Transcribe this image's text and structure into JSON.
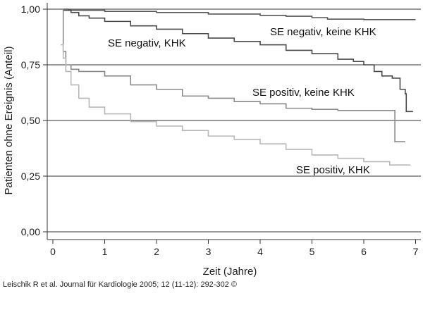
{
  "chart_data": {
    "type": "line",
    "subtype": "step (Kaplan-Meier survival curves)",
    "title": "",
    "xlabel": "Zeit (Jahre)",
    "ylabel": "Patienten ohne Ereignis (Anteil)",
    "xlim": [
      0,
      7.2
    ],
    "ylim": [
      0,
      1.03
    ],
    "x_ticks": [
      0,
      1,
      2,
      3,
      4,
      5,
      6,
      7
    ],
    "x_tick_labels": [
      "0",
      "1",
      "2",
      "3",
      "4",
      "5",
      "6",
      "7"
    ],
    "y_ticks": [
      0,
      0.25,
      0.5,
      0.75,
      1.0
    ],
    "y_tick_labels": [
      "0,00",
      "0,25",
      "0,50",
      "0,75",
      "1,00"
    ],
    "grid": "horizontal gridlines at y ticks",
    "legend": "none (series labeled directly on chart)",
    "series": [
      {
        "name": "SE negativ, keine KHK",
        "color": "#555555",
        "x": [
          0.15,
          0.3,
          1.0,
          2.0,
          3.0,
          4.0,
          4.5,
          5.0,
          5.3,
          6.0,
          6.5,
          7.0
        ],
        "y": [
          1.0,
          0.995,
          0.99,
          0.985,
          0.978,
          0.972,
          0.968,
          0.962,
          0.955,
          0.953,
          0.953,
          0.953
        ]
      },
      {
        "name": "SE negativ, KHK",
        "color": "#4a4a4a",
        "x": [
          0.2,
          0.35,
          0.5,
          0.7,
          1.0,
          1.5,
          2.0,
          2.5,
          3.0,
          3.5,
          4.0,
          4.5,
          5.0,
          5.5,
          5.8,
          6.0,
          6.2,
          6.35,
          6.55,
          6.7,
          6.8,
          6.82,
          6.95
        ],
        "y": [
          0.995,
          0.985,
          0.97,
          0.96,
          0.945,
          0.925,
          0.91,
          0.89,
          0.87,
          0.855,
          0.84,
          0.815,
          0.8,
          0.775,
          0.765,
          0.75,
          0.72,
          0.7,
          0.69,
          0.64,
          0.62,
          0.54,
          0.54
        ]
      },
      {
        "name": "SE positiv, keine KHK",
        "color": "#8a8a8a",
        "x": [
          0.15,
          0.2,
          0.25,
          0.35,
          0.5,
          1.0,
          1.5,
          2.0,
          2.5,
          3.0,
          3.5,
          4.0,
          4.5,
          5.0,
          5.5,
          6.0,
          6.4,
          6.6,
          6.8
        ],
        "y": [
          1.0,
          0.81,
          0.75,
          0.73,
          0.72,
          0.7,
          0.66,
          0.64,
          0.61,
          0.6,
          0.585,
          0.575,
          0.555,
          0.55,
          0.545,
          0.545,
          0.545,
          0.405,
          0.405
        ]
      },
      {
        "name": "SE positiv, KHK",
        "color": "#b8b8b8",
        "x": [
          0.15,
          0.2,
          0.25,
          0.35,
          0.5,
          0.7,
          1.0,
          1.5,
          2.0,
          2.5,
          3.0,
          3.5,
          4.0,
          4.5,
          5.0,
          5.5,
          6.0,
          6.5,
          6.9
        ],
        "y": [
          0.84,
          0.78,
          0.72,
          0.66,
          0.6,
          0.56,
          0.53,
          0.495,
          0.475,
          0.455,
          0.43,
          0.415,
          0.395,
          0.37,
          0.345,
          0.33,
          0.315,
          0.3,
          0.3
        ]
      }
    ],
    "annotations": [
      "SE negativ, keine KHK",
      "SE negativ, KHK",
      "SE positiv, keine KHK",
      "SE positiv, KHK"
    ]
  },
  "credit_text": "Leischik R et al. Journal für Kardiologie 2005; 12 (11-12): 292-302 ©"
}
